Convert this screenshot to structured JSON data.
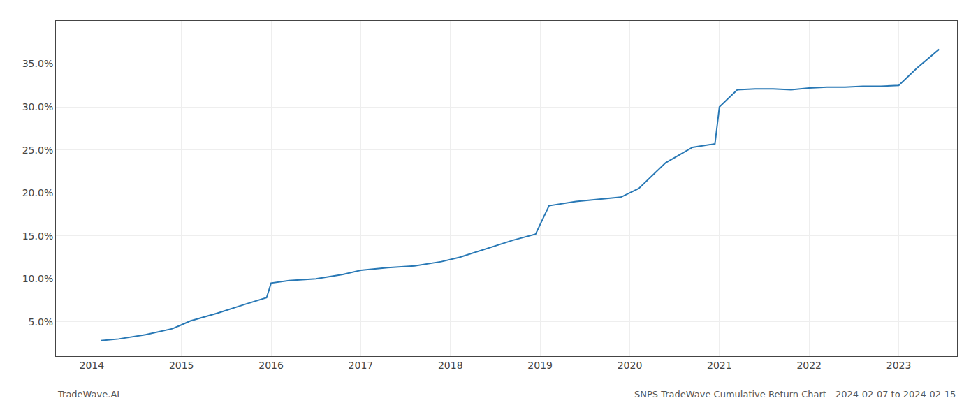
{
  "chart_data": {
    "type": "line",
    "x": [
      2014.1,
      2014.3,
      2014.6,
      2014.9,
      2015.1,
      2015.4,
      2015.7,
      2015.95,
      2016.0,
      2016.2,
      2016.5,
      2016.8,
      2017.0,
      2017.3,
      2017.6,
      2017.9,
      2018.1,
      2018.4,
      2018.7,
      2018.95,
      2019.1,
      2019.4,
      2019.7,
      2019.9,
      2020.1,
      2020.4,
      2020.7,
      2020.95,
      2021.0,
      2021.2,
      2021.4,
      2021.6,
      2021.8,
      2022.0,
      2022.2,
      2022.4,
      2022.6,
      2022.8,
      2023.0,
      2023.2,
      2023.45
    ],
    "values": [
      2.8,
      3.0,
      3.5,
      4.2,
      5.1,
      6.0,
      7.0,
      7.8,
      9.5,
      9.8,
      10.0,
      10.5,
      11.0,
      11.3,
      11.5,
      12.0,
      12.5,
      13.5,
      14.5,
      15.2,
      18.5,
      19.0,
      19.3,
      19.5,
      20.5,
      23.5,
      25.3,
      25.7,
      30.0,
      32.0,
      32.1,
      32.1,
      32.0,
      32.2,
      32.3,
      32.3,
      32.4,
      32.4,
      32.5,
      34.5,
      36.7
    ],
    "color": "#2878b5",
    "xlim": [
      2013.6,
      2023.65
    ],
    "xticks": [
      2014,
      2015,
      2016,
      2017,
      2018,
      2019,
      2020,
      2021,
      2022,
      2023
    ],
    "ylim": [
      1.0,
      40.0
    ],
    "yticks": [
      {
        "value": 5,
        "label": "5.0%"
      },
      {
        "value": 10,
        "label": "10.0%"
      },
      {
        "value": 15,
        "label": "15.0%"
      },
      {
        "value": 20,
        "label": "20.0%"
      },
      {
        "value": 25,
        "label": "25.0%"
      },
      {
        "value": 30,
        "label": "30.0%"
      },
      {
        "value": 35,
        "label": "35.0%"
      }
    ],
    "grid": true,
    "annotations": [
      "TradeWave.AI",
      "SNPS TradeWave Cumulative Return Chart - 2024-02-07 to 2024-02-15"
    ]
  }
}
